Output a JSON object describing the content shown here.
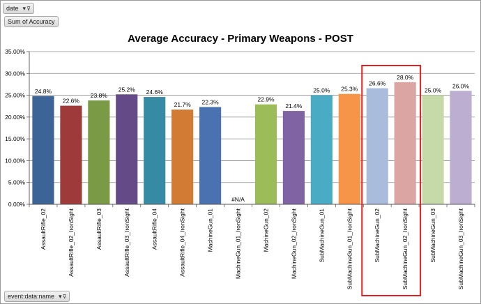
{
  "filters": {
    "date_label": "date",
    "values_label": "Sum of Accuracy",
    "axis_field_label": "event:data:name"
  },
  "chart_data": {
    "type": "bar",
    "title": "Average Accuracy - Primary Weapons - POST",
    "xlabel": "",
    "ylabel": "",
    "ylim": [
      0,
      35
    ],
    "y_ticks": [
      "0.00%",
      "5.00%",
      "10.00%",
      "15.00%",
      "20.00%",
      "25.00%",
      "30.00%",
      "35.00%"
    ],
    "grid": true,
    "categories": [
      "AssaultRifle_02",
      "AssaultRifle_02_IronSight",
      "AssaultRifle_03",
      "AssaultRifle_03_IronSight",
      "AssaultRifle_04",
      "AssaultRifle_04_IronSight",
      "MachineGun_01",
      "MachineGun_01_IronSight",
      "MachineGun_02",
      "MachineGun_02_IronSight",
      "SubMachineGun_01",
      "SubMachineGun_01_IronSight",
      "SubMachineGun_02",
      "SubMachineGun_02_IronSight",
      "SubMachineGun_03",
      "SubMachineGun_03_IronSight"
    ],
    "values": [
      24.8,
      22.6,
      23.8,
      25.2,
      24.6,
      21.7,
      22.3,
      null,
      22.9,
      21.4,
      25.0,
      25.3,
      26.6,
      28.0,
      25.0,
      26.0
    ],
    "data_labels": [
      "24.8%",
      "22.6%",
      "23.8%",
      "25.2%",
      "24.6%",
      "21.7%",
      "22.3%",
      "#N/A",
      "22.9%",
      "21.4%",
      "25.0%",
      "25.3%",
      "26.6%",
      "28.0%",
      "25.0%",
      "26.0%"
    ],
    "colors": [
      "#3c6496",
      "#9e3b3a",
      "#7b9a45",
      "#644a86",
      "#368aa4",
      "#d17b35",
      "#4a72b0",
      "#bbbbbb",
      "#9bbc59",
      "#8063a2",
      "#4aabc5",
      "#f69547",
      "#a9bcdc",
      "#dba5a4",
      "#c6d9a9",
      "#bcaed1"
    ],
    "highlight": {
      "categories": [
        "SubMachineGun_02",
        "SubMachineGun_02_IronSight"
      ],
      "color": "#e02020"
    }
  }
}
